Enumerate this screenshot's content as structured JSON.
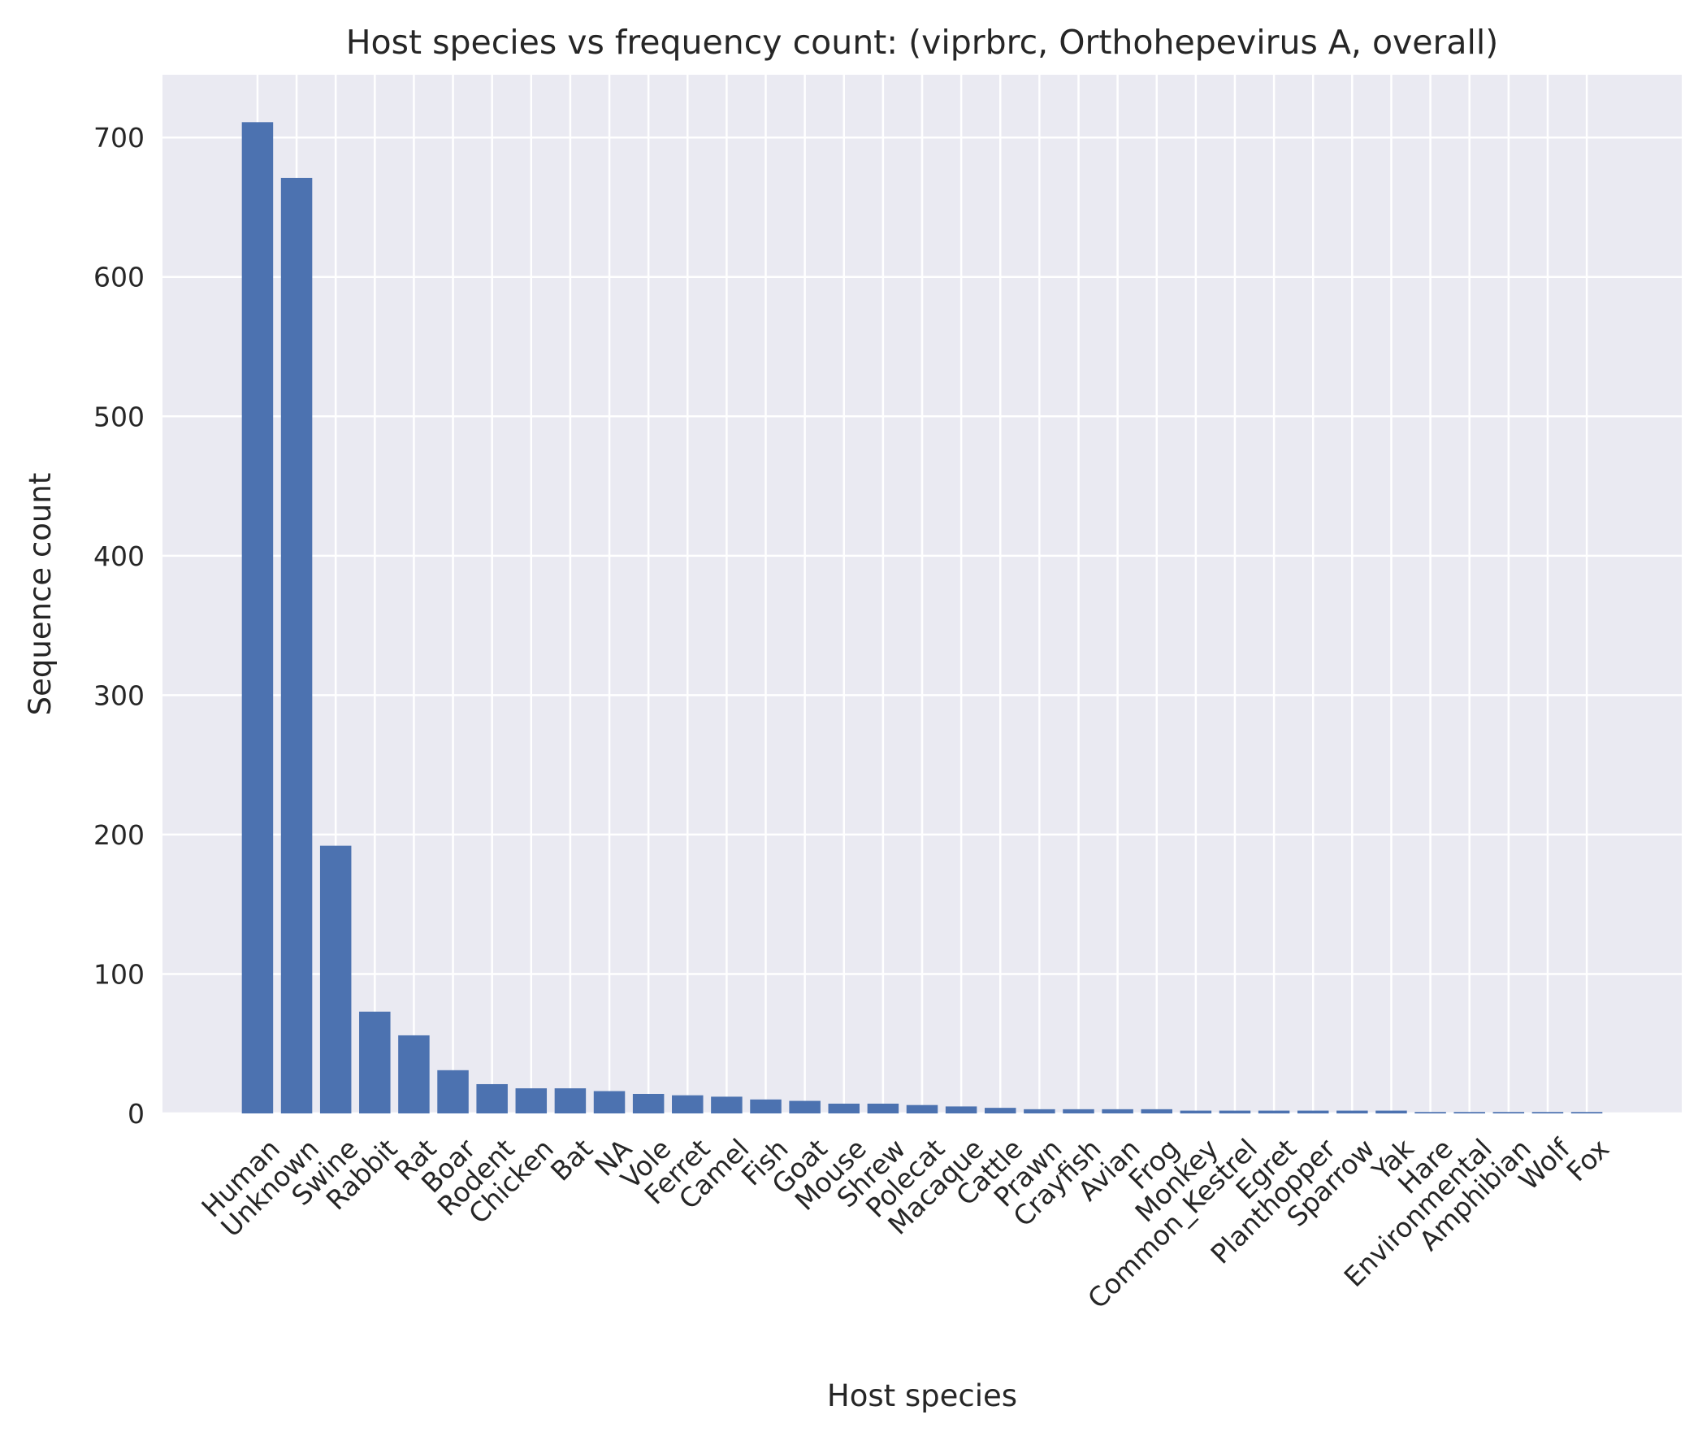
{
  "colors": {
    "bar": "#4c72b0",
    "plot_background": "#eaeaf2",
    "grid": "#ffffff",
    "text": "#262626"
  },
  "chart_data": {
    "type": "bar",
    "title": "Host species vs frequency count: (viprbrc, Orthohepevirus A, overall)",
    "xlabel": "Host species",
    "ylabel": "Sequence count",
    "ylim": [
      0,
      745
    ],
    "yticks": [
      0,
      100,
      200,
      300,
      400,
      500,
      600,
      700
    ],
    "grid": true,
    "categories": [
      "Human",
      "Unknown",
      "Swine",
      "Rabbit",
      "Rat",
      "Boar",
      "Rodent",
      "Chicken",
      "Bat",
      "NA",
      "Vole",
      "Ferret",
      "Camel",
      "Fish",
      "Goat",
      "Mouse",
      "Shrew",
      "Polecat",
      "Macaque",
      "Cattle",
      "Prawn",
      "Crayfish",
      "Avian",
      "Frog",
      "Monkey",
      "Common_Kestrel",
      "Egret",
      "Planthopper",
      "Sparrow",
      "Yak",
      "Hare",
      "Environmental",
      "Amphibian",
      "Wolf",
      "Fox"
    ],
    "values": [
      711,
      671,
      192,
      73,
      56,
      31,
      21,
      18,
      18,
      16,
      14,
      13,
      12,
      10,
      9,
      7,
      7,
      6,
      5,
      4,
      3,
      3,
      3,
      3,
      2,
      2,
      2,
      2,
      2,
      2,
      1,
      1,
      1,
      1,
      1
    ]
  }
}
